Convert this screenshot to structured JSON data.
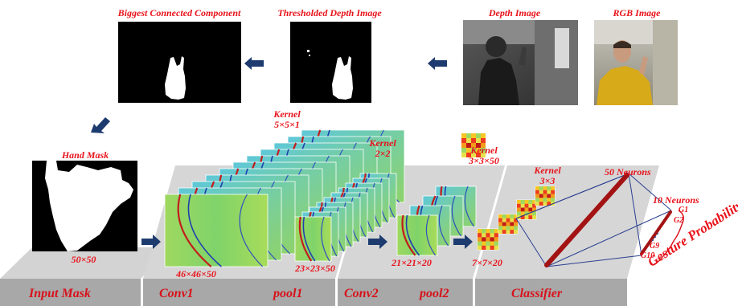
{
  "top_labels": {
    "biggest": "Biggest Connected Component",
    "thresholded": "Thresholded Depth Image",
    "depth": "Depth Image",
    "rgb": "RGB Image"
  },
  "hand_mask_label": "Hand Mask",
  "kernels": {
    "k1_title": "Kernel",
    "k1_size": "5×5×1",
    "k2_title": "Kernel",
    "k2_size": "2×2",
    "k3_title": "Kernel",
    "k3_size": "3×3×50",
    "k4_title": "Kernel",
    "k4_size": "3×3"
  },
  "dims": {
    "input": "50×50",
    "conv1": "46×46×50",
    "pool1": "23×23×50",
    "conv2": "21×21×20",
    "pool2": "7×7×20"
  },
  "neurons": {
    "fifty": "50 Neurons",
    "ten": "10 Neurons"
  },
  "gestures": {
    "g1": "G1",
    "g2": "G2",
    "g9": "G9",
    "g10": "G10"
  },
  "gesture_probability": "Gesture Probability",
  "sections": {
    "input_mask": "Input Mask",
    "conv1": "Conv1",
    "pool1": "pool1",
    "conv2": "Conv2",
    "pool2": "pool2",
    "classifier": "Classifier"
  },
  "colors": {
    "label_red": "#e8131b",
    "arrow_navy": "#1d3b6e",
    "platform_top": "#d4d4d4",
    "platform_front": "#a9a9a9",
    "fc_line": "#2a3f8f",
    "bar_red": "#a31313"
  }
}
